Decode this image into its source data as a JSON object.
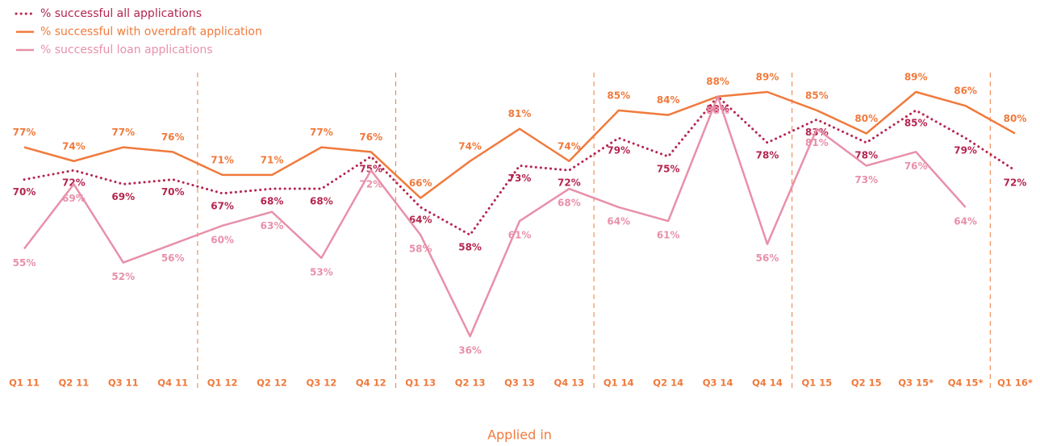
{
  "chart_data": {
    "type": "line",
    "x_label": "Applied in",
    "categories": [
      "Q1 11",
      "Q2 11",
      "Q3 11",
      "Q4 11",
      "Q1 12",
      "Q2 12",
      "Q3 12",
      "Q4 12",
      "Q1 13",
      "Q2 13",
      "Q3 13",
      "Q4 13",
      "Q1 14",
      "Q2 14",
      "Q3 14",
      "Q4 14",
      "Q1 15",
      "Q2 15",
      "Q3 15*",
      "Q4 15*",
      "Q1 16*"
    ],
    "series": [
      {
        "name": "% successful all applications",
        "color": "#b5254f",
        "style": "dotted",
        "values": [
          70,
          72,
          69,
          70,
          67,
          68,
          68,
          75,
          64,
          58,
          73,
          72,
          79,
          75,
          88,
          78,
          83,
          78,
          85,
          79,
          72
        ],
        "value_labels": [
          "70%",
          "72%",
          "69%",
          "70%",
          "67%",
          "68%",
          "68%",
          "75%",
          "64%",
          "58%",
          "73%",
          "72%",
          "79%",
          "75%",
          "88%",
          "78%",
          "83%",
          "78%",
          "85%",
          "79%",
          "72%"
        ]
      },
      {
        "name": "% successful with overdraft application",
        "color": "#f07a3c",
        "style": "solid",
        "values": [
          77,
          74,
          77,
          76,
          71,
          71,
          77,
          76,
          66,
          74,
          81,
          74,
          85,
          84,
          88,
          89,
          85,
          80,
          89,
          86,
          80
        ],
        "value_labels": [
          "77%",
          "74%",
          "77%",
          "76%",
          "71%",
          "71%",
          "77%",
          "76%",
          "66%",
          "74%",
          "81%",
          "74%",
          "85%",
          "84%",
          "88%",
          "89%",
          "85%",
          "80%",
          "89%",
          "86%",
          "80%"
        ]
      },
      {
        "name": "% successful loan applications",
        "color": "#e890aa",
        "style": "solid",
        "values": [
          55,
          69,
          52,
          56,
          60,
          63,
          53,
          72,
          58,
          36,
          61,
          68,
          64,
          61,
          88,
          56,
          81,
          73,
          76,
          64,
          null
        ],
        "value_labels": [
          "55%",
          "69%",
          "52%",
          "56%",
          "60%",
          "63%",
          "53%",
          "72%",
          "58%",
          "36%",
          "61%",
          "68%",
          "64%",
          "61%",
          "88%",
          "56%",
          "81%",
          "73%",
          "76%",
          "64%",
          null
        ]
      }
    ],
    "legend": "top-left"
  }
}
